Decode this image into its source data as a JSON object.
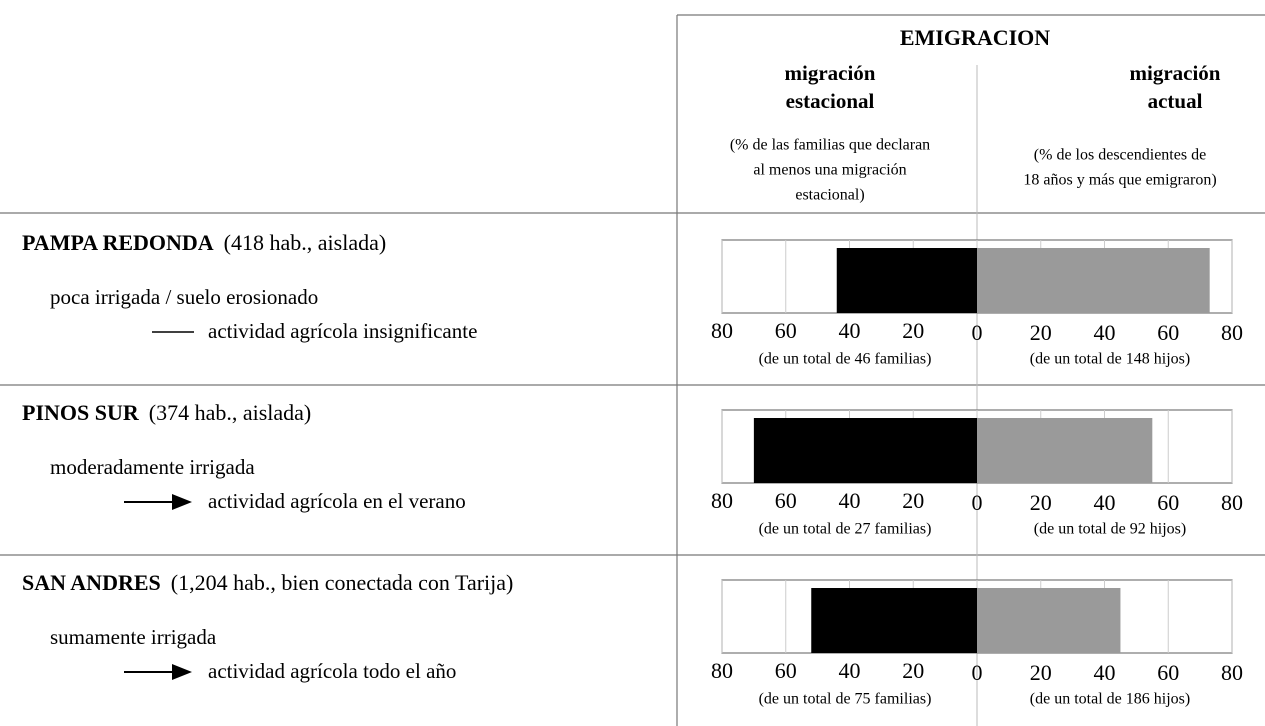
{
  "header": {
    "title": "EMIGRACION",
    "left_heading": [
      "migración",
      "estacional"
    ],
    "left_note": [
      "(% de las familias que declaran",
      "al menos una migración",
      "estacional)"
    ],
    "right_heading": [
      "migración",
      "actual"
    ],
    "right_note": [
      "(% de los descendientes de",
      "18 años y más que emigraron)"
    ]
  },
  "chart_data": [
    {
      "type": "butterfly",
      "title": "PAMPA REDONDA",
      "subtitle": "(418 hab., aislada)",
      "description": [
        "poca irrigada / suelo erosionado",
        "actividad agrícola insignificante"
      ],
      "xlim": [
        0,
        80
      ],
      "xticks": [
        0,
        20,
        40,
        60,
        80
      ],
      "grid": true,
      "series": [
        {
          "name": "(de un total de 46 familias)",
          "color": "#000000",
          "values": [
            44
          ]
        },
        {
          "name": "(de un total de 148 hijos)",
          "color": "#9a9a9a",
          "values": [
            73
          ]
        }
      ]
    },
    {
      "type": "butterfly",
      "title": "PINOS SUR",
      "subtitle": "(374 hab., aislada)",
      "description": [
        "moderadamente irrigada",
        "actividad agrícola en el verano"
      ],
      "xlim": [
        0,
        80
      ],
      "xticks": [
        0,
        20,
        40,
        60,
        80
      ],
      "grid": true,
      "series": [
        {
          "name": "(de un total de 27 familias)",
          "color": "#000000",
          "values": [
            70
          ]
        },
        {
          "name": "(de un total de 92 hijos)",
          "color": "#9a9a9a",
          "values": [
            55
          ]
        }
      ]
    },
    {
      "type": "butterfly",
      "title": "SAN ANDRES",
      "subtitle": "(1,204  hab., bien conectada con Tarija)",
      "description": [
        "sumamente irrigada",
        "actividad agrícola todo el año"
      ],
      "xlim": [
        0,
        80
      ],
      "xticks": [
        0,
        20,
        40,
        60,
        80
      ],
      "grid": true,
      "series": [
        {
          "name": "(de un total de 75 familias)",
          "color": "#000000",
          "values": [
            52
          ]
        },
        {
          "name": "(de un total de 186 hijos)",
          "color": "#9a9a9a",
          "values": [
            45
          ]
        }
      ]
    }
  ]
}
